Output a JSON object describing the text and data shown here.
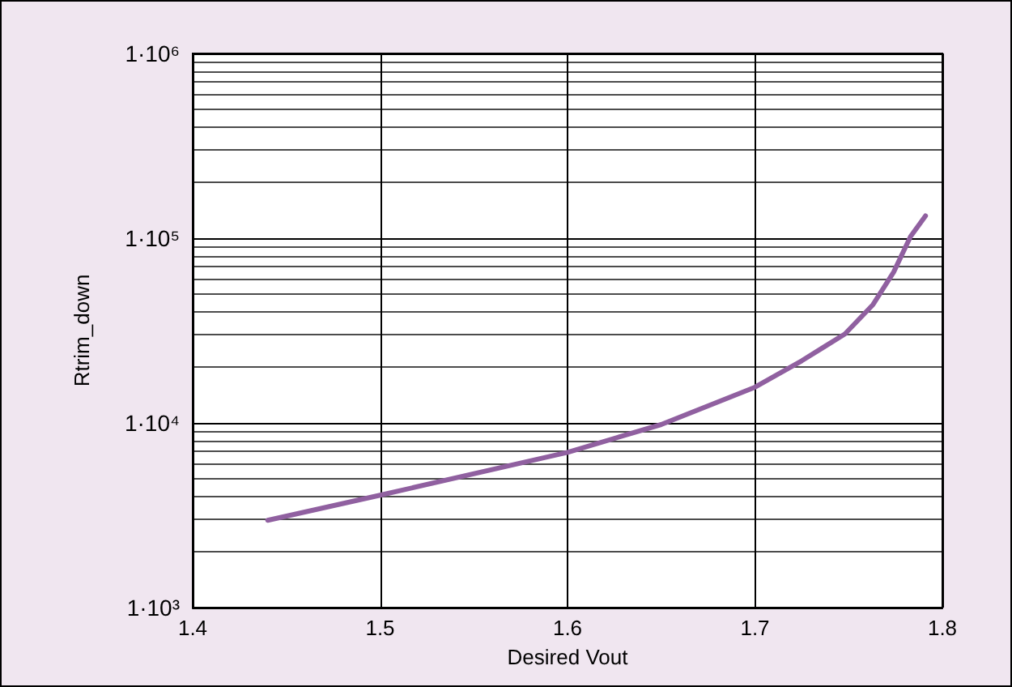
{
  "chart_data": {
    "type": "line",
    "xlabel": "Desired Vout",
    "ylabel": "Rtrim_down",
    "x": [
      1.44,
      1.5,
      1.6,
      1.65,
      1.7,
      1.725,
      1.748,
      1.763,
      1.774,
      1.783,
      1.791
    ],
    "series": [
      {
        "color": "#9060a0",
        "values": [
          2970,
          4060,
          6930,
          9800,
          15600,
          21700,
          30300,
          43700,
          65500,
          102000,
          132000
        ]
      }
    ],
    "log": "y",
    "grid": true,
    "marker": "none",
    "xlim": [
      1.4,
      1.8
    ],
    "xticks": [
      1.4,
      1.5,
      1.6,
      1.7,
      1.8
    ],
    "ylim": [
      1000,
      1000000
    ],
    "yticks": [
      {
        "value": 1000,
        "label": "1·10³"
      },
      {
        "value": 10000,
        "label": "1·10⁴"
      },
      {
        "value": 100000,
        "label": "1·10⁵"
      },
      {
        "value": 1000000,
        "label": "1·10⁶"
      }
    ]
  }
}
